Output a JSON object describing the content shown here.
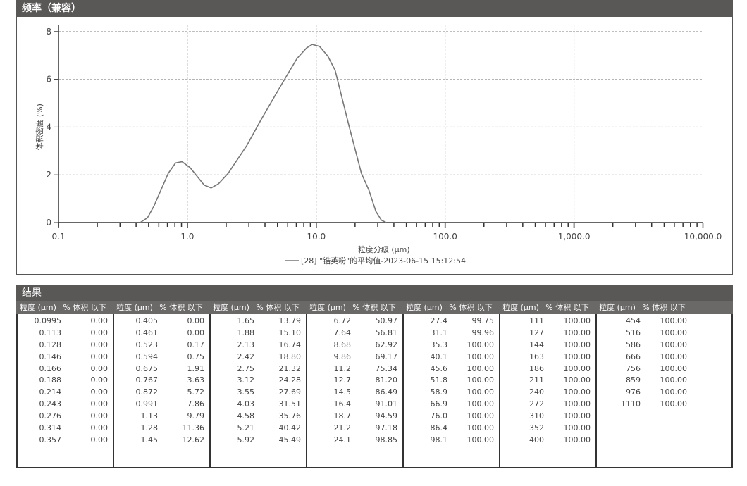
{
  "chart_section": {
    "title": "频率（兼容）"
  },
  "chart_data": {
    "type": "line",
    "title": "",
    "xlabel": "粒度分级 (μm)",
    "ylabel": "体积密度 (%)",
    "xscale": "log",
    "xlim": [
      0.1,
      10000
    ],
    "ylim": [
      0,
      8
    ],
    "xticks": [
      "0.1",
      "1.0",
      "10.0",
      "100.0",
      "1,000.0",
      "10,000.0"
    ],
    "yticks": [
      "0",
      "2",
      "4",
      "6",
      "8"
    ],
    "grid": true,
    "legend_position": "bottom",
    "series": [
      {
        "name": "[28] \"锆英粉\"的平均值-2023-06-15 15:12:54",
        "color": "#777777",
        "x": [
          0.43,
          0.49,
          0.55,
          0.71,
          0.81,
          0.91,
          1.05,
          1.35,
          1.53,
          1.74,
          2.07,
          2.9,
          3.74,
          5.25,
          7.08,
          8.4,
          9.3,
          10.6,
          12.3,
          14,
          18,
          22.4,
          25.6,
          29,
          32,
          35
        ],
        "y": [
          0,
          0.2,
          0.69,
          2.06,
          2.5,
          2.55,
          2.3,
          1.57,
          1.45,
          1.62,
          2.06,
          3.24,
          4.32,
          5.69,
          6.87,
          7.31,
          7.46,
          7.38,
          6.97,
          6.38,
          4.02,
          2.06,
          1.36,
          0.47,
          0.1,
          0
        ]
      }
    ]
  },
  "results": {
    "title": "结果",
    "col_size": "粒度 (μm)",
    "col_pct": "% 体积 以下",
    "groups": [
      [
        [
          "0.0995",
          "0.00"
        ],
        [
          "0.113",
          "0.00"
        ],
        [
          "0.128",
          "0.00"
        ],
        [
          "0.146",
          "0.00"
        ],
        [
          "0.166",
          "0.00"
        ],
        [
          "0.188",
          "0.00"
        ],
        [
          "0.214",
          "0.00"
        ],
        [
          "0.243",
          "0.00"
        ],
        [
          "0.276",
          "0.00"
        ],
        [
          "0.314",
          "0.00"
        ],
        [
          "0.357",
          "0.00"
        ]
      ],
      [
        [
          "0.405",
          "0.00"
        ],
        [
          "0.461",
          "0.00"
        ],
        [
          "0.523",
          "0.17"
        ],
        [
          "0.594",
          "0.75"
        ],
        [
          "0.675",
          "1.91"
        ],
        [
          "0.767",
          "3.63"
        ],
        [
          "0.872",
          "5.72"
        ],
        [
          "0.991",
          "7.86"
        ],
        [
          "1.13",
          "9.79"
        ],
        [
          "1.28",
          "11.36"
        ],
        [
          "1.45",
          "12.62"
        ]
      ],
      [
        [
          "1.65",
          "13.79"
        ],
        [
          "1.88",
          "15.10"
        ],
        [
          "2.13",
          "16.74"
        ],
        [
          "2.42",
          "18.80"
        ],
        [
          "2.75",
          "21.32"
        ],
        [
          "3.12",
          "24.28"
        ],
        [
          "3.55",
          "27.69"
        ],
        [
          "4.03",
          "31.51"
        ],
        [
          "4.58",
          "35.76"
        ],
        [
          "5.21",
          "40.42"
        ],
        [
          "5.92",
          "45.49"
        ]
      ],
      [
        [
          "6.72",
          "50.97"
        ],
        [
          "7.64",
          "56.81"
        ],
        [
          "8.68",
          "62.92"
        ],
        [
          "9.86",
          "69.17"
        ],
        [
          "11.2",
          "75.34"
        ],
        [
          "12.7",
          "81.20"
        ],
        [
          "14.5",
          "86.49"
        ],
        [
          "16.4",
          "91.01"
        ],
        [
          "18.7",
          "94.59"
        ],
        [
          "21.2",
          "97.18"
        ],
        [
          "24.1",
          "98.85"
        ]
      ],
      [
        [
          "27.4",
          "99.75"
        ],
        [
          "31.1",
          "99.96"
        ],
        [
          "35.3",
          "100.00"
        ],
        [
          "40.1",
          "100.00"
        ],
        [
          "45.6",
          "100.00"
        ],
        [
          "51.8",
          "100.00"
        ],
        [
          "58.9",
          "100.00"
        ],
        [
          "66.9",
          "100.00"
        ],
        [
          "76.0",
          "100.00"
        ],
        [
          "86.4",
          "100.00"
        ],
        [
          "98.1",
          "100.00"
        ]
      ],
      [
        [
          "111",
          "100.00"
        ],
        [
          "127",
          "100.00"
        ],
        [
          "144",
          "100.00"
        ],
        [
          "163",
          "100.00"
        ],
        [
          "186",
          "100.00"
        ],
        [
          "211",
          "100.00"
        ],
        [
          "240",
          "100.00"
        ],
        [
          "272",
          "100.00"
        ],
        [
          "310",
          "100.00"
        ],
        [
          "352",
          "100.00"
        ],
        [
          "400",
          "100.00"
        ]
      ],
      [
        [
          "454",
          "100.00"
        ],
        [
          "516",
          "100.00"
        ],
        [
          "586",
          "100.00"
        ],
        [
          "666",
          "100.00"
        ],
        [
          "756",
          "100.00"
        ],
        [
          "859",
          "100.00"
        ],
        [
          "976",
          "100.00"
        ],
        [
          "1110",
          "100.00"
        ]
      ]
    ]
  }
}
